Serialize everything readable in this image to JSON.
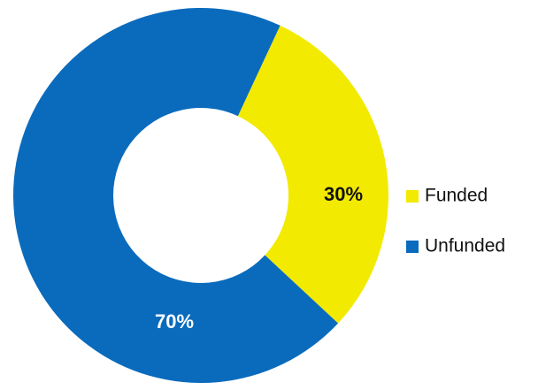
{
  "chart_data": {
    "type": "pie",
    "donut": true,
    "slices": [
      {
        "label": "Funded",
        "value": 30,
        "display": "30%",
        "color": "#f2ea00",
        "label_color": "#111111"
      },
      {
        "label": "Unfunded",
        "value": 70,
        "display": "70%",
        "color": "#0a6bbd",
        "label_color": "#ffffff"
      }
    ],
    "legend_placement": "right",
    "start_angle_deg": 25
  }
}
